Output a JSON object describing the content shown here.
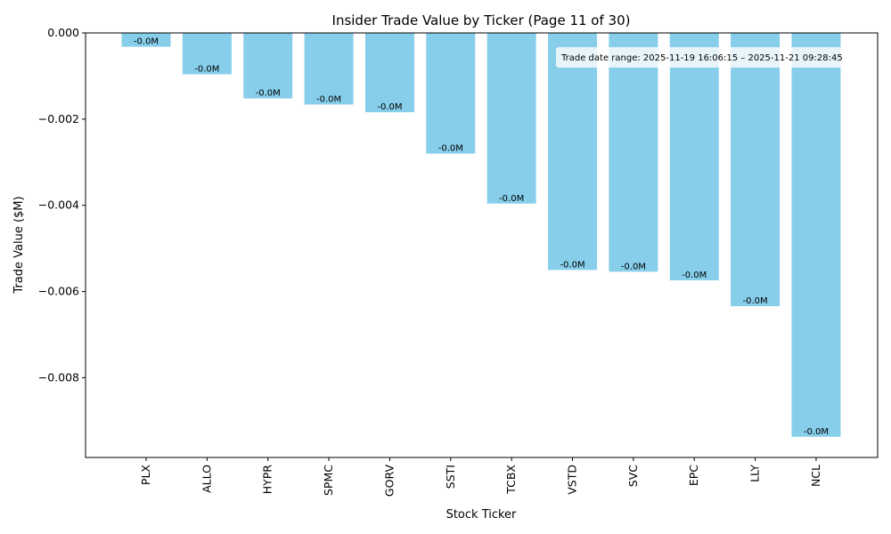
{
  "chart_data": {
    "type": "bar",
    "title": "Insider Trade Value by Ticker (Page 11 of 30)",
    "xlabel": "Stock Ticker",
    "ylabel": "Trade Value ($M)",
    "categories": [
      "PLX",
      "ALLO",
      "HYPR",
      "SPMC",
      "GORV",
      "SSTI",
      "TCBX",
      "VSTD",
      "SVC",
      "EPC",
      "LLY",
      "NCL"
    ],
    "values": [
      -0.00032,
      -0.00096,
      -0.00152,
      -0.00166,
      -0.00184,
      -0.0028,
      -0.00396,
      -0.0055,
      -0.00554,
      -0.00574,
      -0.00634,
      -0.00937
    ],
    "data_labels": [
      "-0.0M",
      "-0.0M",
      "-0.0M",
      "-0.0M",
      "-0.0M",
      "-0.0M",
      "-0.0M",
      "-0.0M",
      "-0.0M",
      "-0.0M",
      "-0.0M",
      "-0.0M"
    ],
    "ylim": [
      -0.00985,
      0
    ],
    "yticks": [
      0,
      -0.002,
      -0.004,
      -0.006,
      -0.008
    ],
    "ytick_labels": [
      "0.000",
      "−0.002",
      "−0.004",
      "−0.006",
      "−0.008"
    ],
    "bar_color": "#87ceeb",
    "grid": false,
    "annotation": "Trade date range: 2025-11-19 16:06:15 – 2025-11-21 09:28:45",
    "annotation_position": "top-right"
  }
}
